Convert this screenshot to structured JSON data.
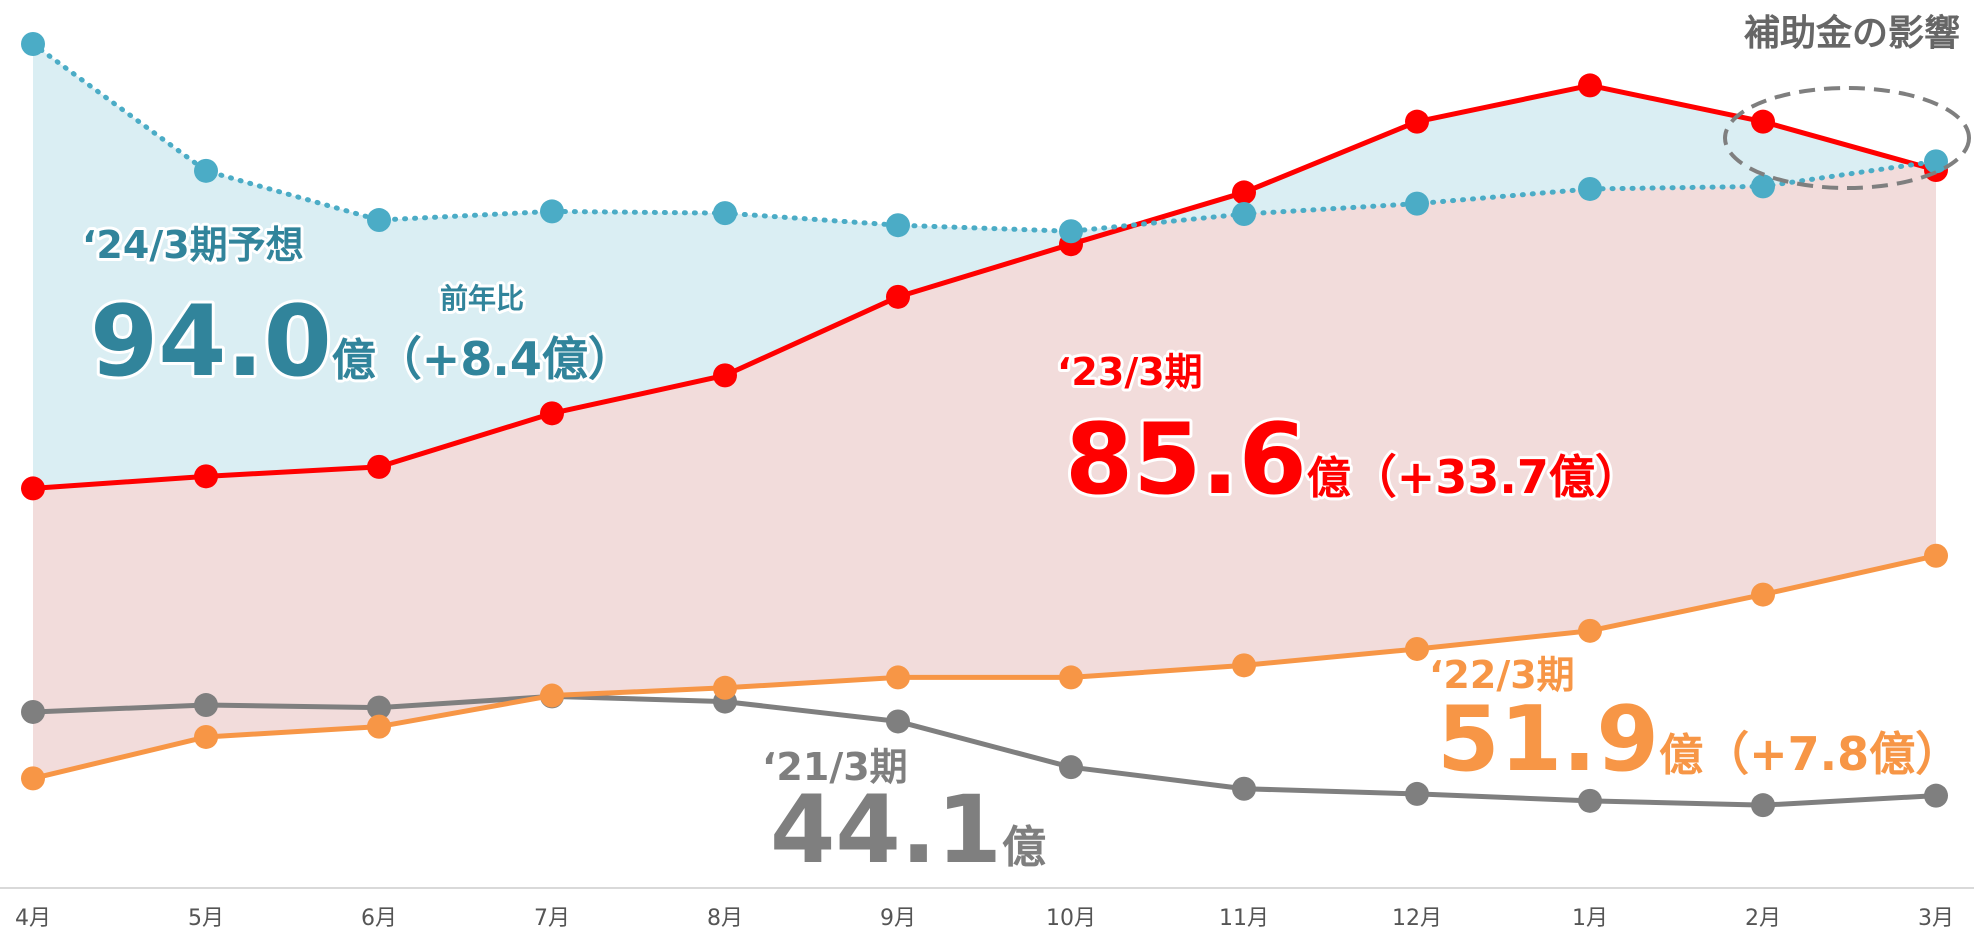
{
  "chart_data": {
    "type": "line",
    "categories": [
      "4月",
      "5月",
      "6月",
      "7月",
      "8月",
      "9月",
      "10月",
      "11月",
      "12月",
      "1月",
      "2月",
      "3月"
    ],
    "ylim": [
      0,
      100
    ],
    "series": [
      {
        "name": "‘21/3期",
        "color": "#7f7f7f",
        "total": "44.1",
        "unit": "億",
        "values": [
          20.4,
          21.2,
          20.9,
          22.2,
          21.6,
          19.3,
          14.0,
          11.5,
          10.9,
          10.1,
          9.6,
          10.7
        ]
      },
      {
        "name": "‘22/3期",
        "color": "#f79646",
        "total": "51.9",
        "unit": "億",
        "change": "（+7.8億）",
        "values": [
          12.7,
          17.5,
          18.7,
          22.3,
          23.2,
          24.4,
          24.4,
          25.8,
          27.7,
          29.8,
          34.0,
          38.5
        ]
      },
      {
        "name": "‘23/3期",
        "color": "#ff0000",
        "total": "85.6",
        "unit": "億",
        "change": "（+33.7億）",
        "fill": "#f2dcdb",
        "values": [
          46.3,
          47.7,
          48.8,
          55.0,
          59.4,
          68.5,
          74.6,
          80.6,
          88.8,
          93.0,
          88.8,
          83.2
        ]
      },
      {
        "name": "‘24/3期予想",
        "color": "#4bacc6",
        "text_color": "#31849b",
        "dotted": true,
        "total": "94.0",
        "unit": "億",
        "change": "（+8.4億）",
        "change_caption": "前年比",
        "fill": "#daeef3",
        "values": [
          97.8,
          83.1,
          77.4,
          78.4,
          78.2,
          76.8,
          76.1,
          78.1,
          79.3,
          81.0,
          81.3,
          84.2
        ]
      }
    ],
    "annotation": "補助金の影響"
  }
}
